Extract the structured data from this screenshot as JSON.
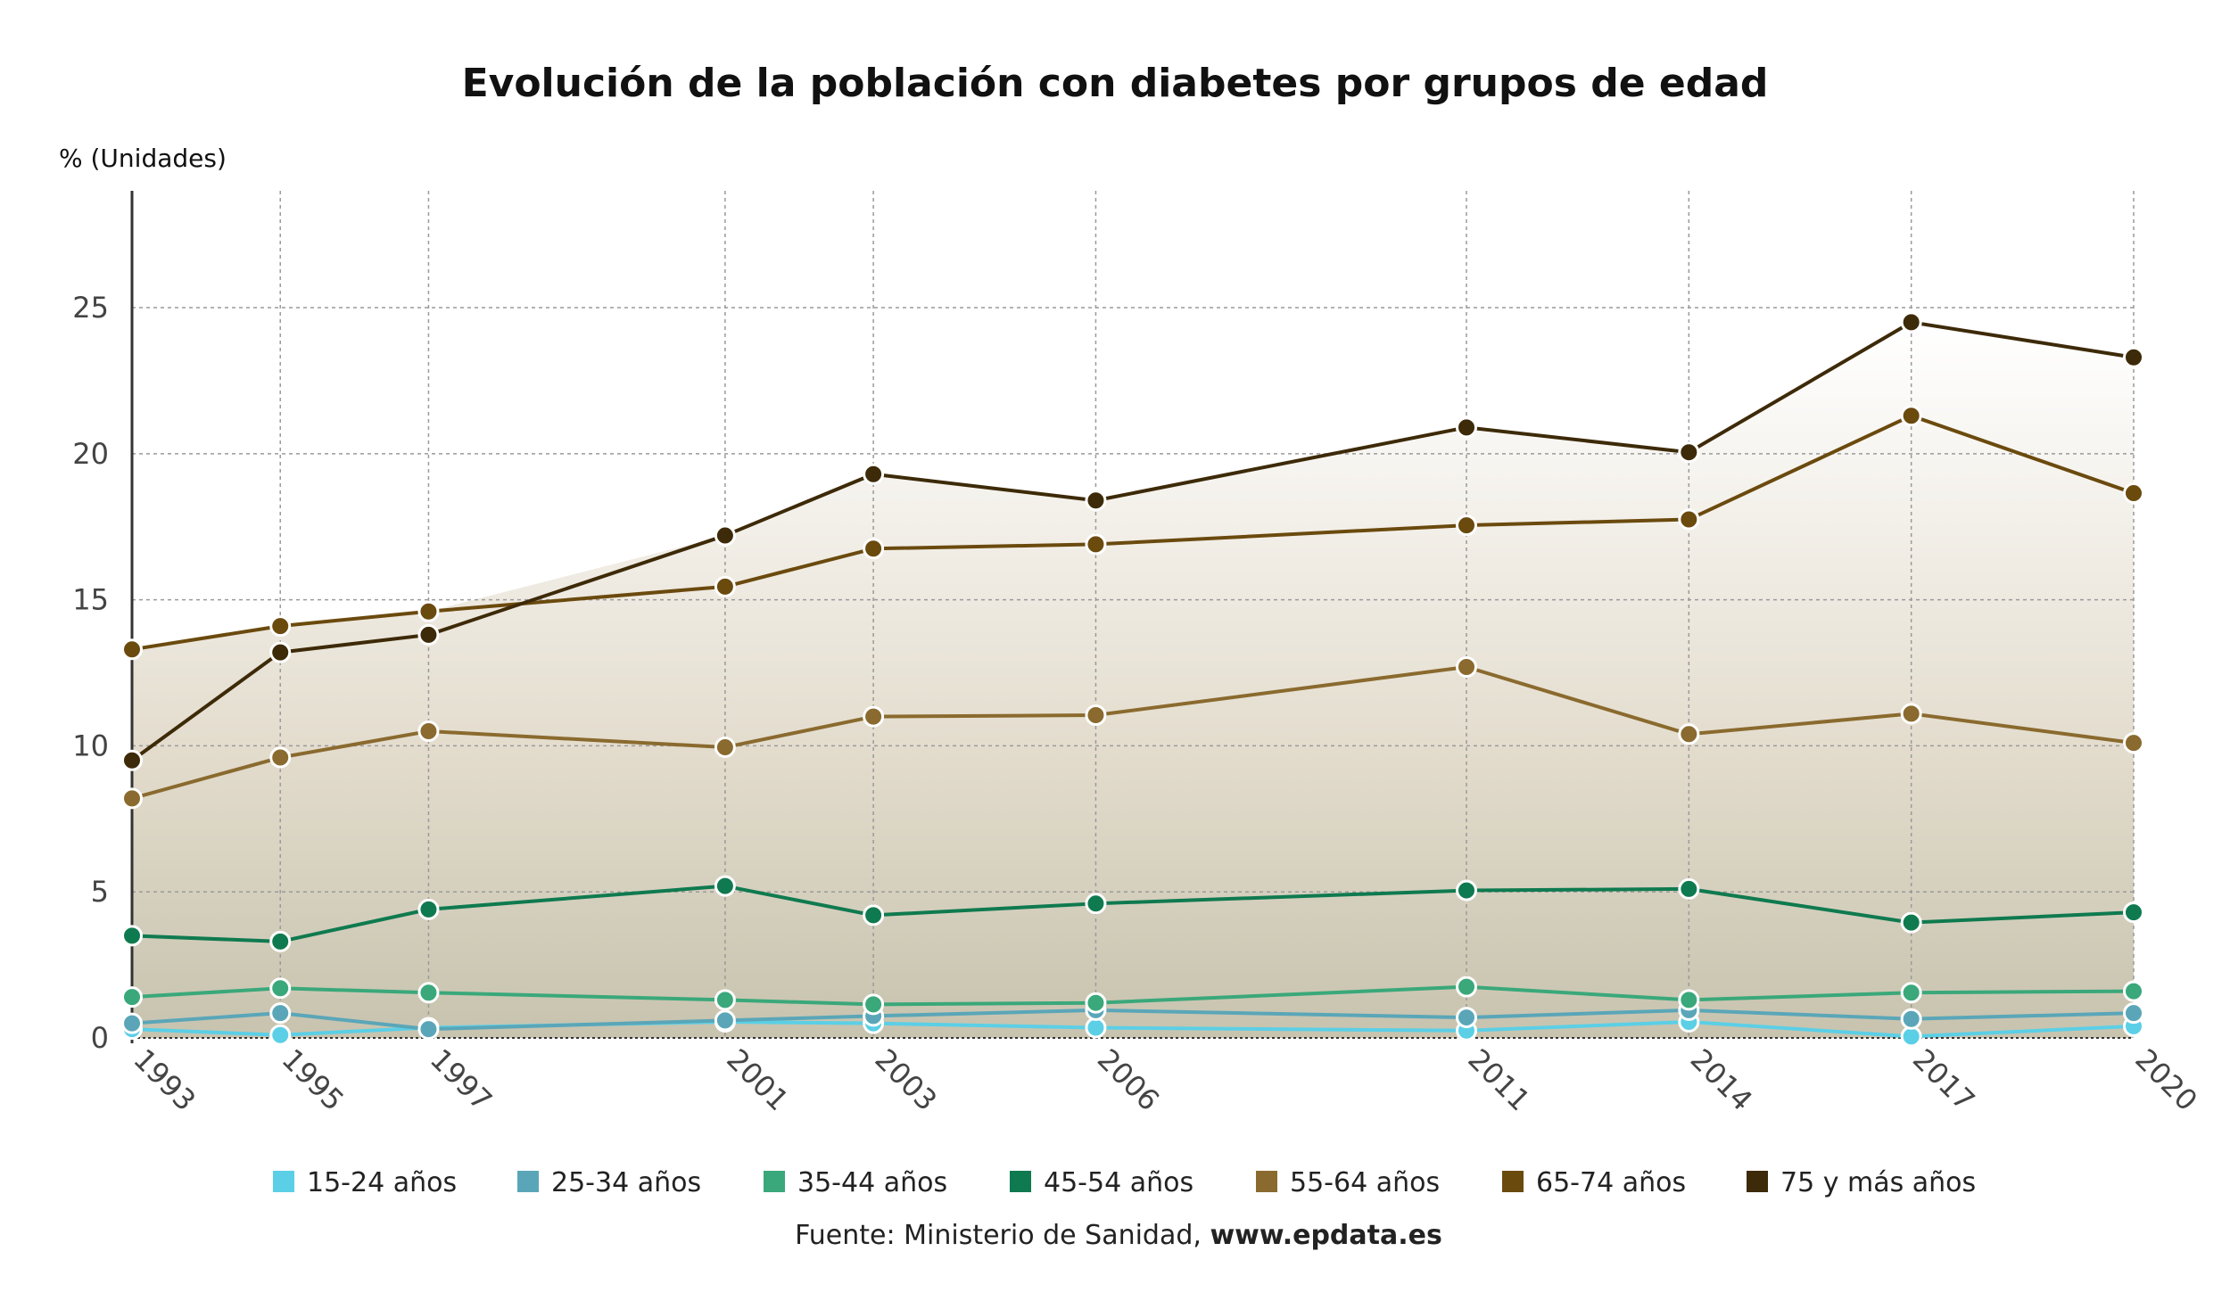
{
  "chart_data": {
    "type": "line",
    "title": "Evolución de la población con diabetes por grupos de edad",
    "ylabel": "% (Unidades)",
    "xlabel": "",
    "x": [
      1993,
      1995,
      1997,
      2001,
      2003,
      2006,
      2011,
      2014,
      2017,
      2020
    ],
    "ylim": [
      0,
      29
    ],
    "yticks": [
      0,
      5,
      10,
      15,
      20,
      25
    ],
    "grid": true,
    "legend_position": "bottom",
    "series": [
      {
        "name": "15-24 años",
        "color": "#5bcfe6",
        "values": [
          0.3,
          0.1,
          0.35,
          0.55,
          0.5,
          0.35,
          0.25,
          0.55,
          0.05,
          0.4
        ]
      },
      {
        "name": "25-34 años",
        "color": "#5aa6b8",
        "values": [
          0.5,
          0.85,
          0.3,
          0.6,
          0.75,
          0.95,
          0.7,
          0.95,
          0.65,
          0.85
        ]
      },
      {
        "name": "35-44 años",
        "color": "#3aa87a",
        "values": [
          1.4,
          1.7,
          1.55,
          1.3,
          1.15,
          1.2,
          1.75,
          1.3,
          1.55,
          1.6
        ]
      },
      {
        "name": "45-54 años",
        "color": "#0f7a4f",
        "values": [
          3.5,
          3.3,
          4.4,
          5.2,
          4.2,
          4.6,
          5.05,
          5.1,
          3.95,
          4.3
        ]
      },
      {
        "name": "55-64 años",
        "color": "#8a6a2e",
        "values": [
          8.2,
          9.6,
          10.5,
          9.95,
          11.0,
          11.05,
          12.7,
          10.4,
          11.1,
          10.1
        ]
      },
      {
        "name": "65-74 años",
        "color": "#6b4a0e",
        "values": [
          13.3,
          14.1,
          14.6,
          15.45,
          16.75,
          16.9,
          17.55,
          17.75,
          21.3,
          18.65
        ]
      },
      {
        "name": "75 y más años",
        "color": "#3d2a08",
        "values": [
          9.5,
          13.2,
          13.8,
          17.2,
          19.3,
          18.4,
          20.9,
          20.05,
          24.5,
          23.3
        ]
      }
    ],
    "source_prefix": "Fuente: Ministerio de Sanidad, ",
    "source_site": "www.epdata.es"
  }
}
